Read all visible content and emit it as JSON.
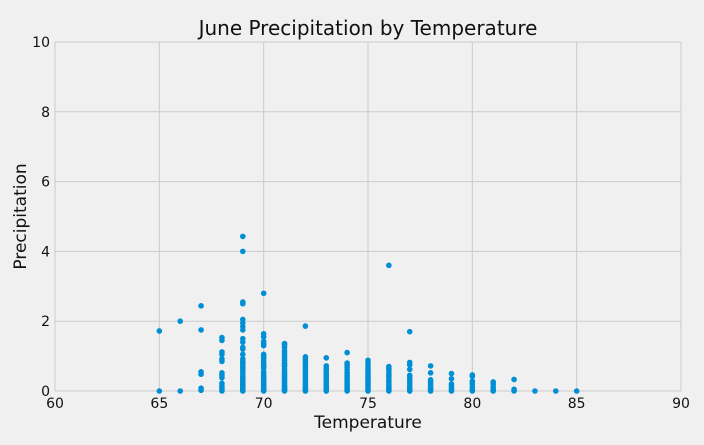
{
  "chart_data": {
    "type": "scatter",
    "title": "June Precipitation by Temperature",
    "xlabel": "Temperature",
    "ylabel": "Precipitation",
    "xlim": [
      60,
      90
    ],
    "ylim": [
      0,
      10
    ],
    "x_ticks": [
      60,
      65,
      70,
      75,
      80,
      85,
      90
    ],
    "y_ticks": [
      0,
      2,
      4,
      6,
      8,
      10
    ],
    "grid": true,
    "marker_color": "#008fd5",
    "background_color": "#f0f0f0",
    "grid_color": "#cbcbcb",
    "x": [
      65,
      65,
      66,
      66,
      67,
      67,
      67,
      67,
      67,
      67,
      68,
      68,
      68,
      68,
      68,
      68,
      68,
      68,
      68,
      68,
      68,
      68,
      68,
      68,
      69,
      69,
      69,
      69,
      69,
      69,
      69,
      69,
      69,
      69,
      69,
      69,
      69,
      69,
      69,
      69,
      69,
      69,
      69,
      69,
      69,
      69,
      69,
      69,
      69,
      69,
      69,
      69,
      69,
      69,
      69,
      69,
      69,
      70,
      70,
      70,
      70,
      70,
      70,
      70,
      70,
      70,
      70,
      70,
      70,
      70,
      70,
      70,
      70,
      70,
      70,
      70,
      70,
      70,
      70,
      70,
      70,
      70,
      70,
      70,
      70,
      70,
      71,
      71,
      71,
      71,
      71,
      71,
      71,
      71,
      71,
      71,
      71,
      71,
      71,
      71,
      71,
      71,
      71,
      71,
      71,
      71,
      71,
      71,
      71,
      71,
      71,
      71,
      72,
      72,
      72,
      72,
      72,
      72,
      72,
      72,
      72,
      72,
      72,
      72,
      72,
      72,
      72,
      72,
      72,
      72,
      72,
      72,
      72,
      73,
      73,
      73,
      73,
      73,
      73,
      73,
      73,
      73,
      73,
      73,
      73,
      73,
      73,
      74,
      74,
      74,
      74,
      74,
      74,
      74,
      74,
      74,
      74,
      74,
      74,
      74,
      74,
      74,
      75,
      75,
      75,
      75,
      75,
      75,
      75,
      75,
      75,
      75,
      75,
      75,
      75,
      75,
      75,
      75,
      76,
      76,
      76,
      76,
      76,
      76,
      76,
      76,
      76,
      76,
      76,
      76,
      76,
      76,
      77,
      77,
      77,
      77,
      77,
      77,
      77,
      77,
      77,
      77,
      77,
      77,
      78,
      78,
      78,
      78,
      78,
      78,
      78,
      78,
      78,
      79,
      79,
      79,
      79,
      79,
      79,
      79,
      80,
      80,
      80,
      80,
      80,
      80,
      80,
      81,
      81,
      81,
      81,
      81,
      82,
      82,
      82,
      83,
      84,
      85
    ],
    "y": [
      1.72,
      0.0,
      2.0,
      0.0,
      2.44,
      1.75,
      0.55,
      0.48,
      0.08,
      0.02,
      1.53,
      1.45,
      1.12,
      1.05,
      0.92,
      0.85,
      0.52,
      0.45,
      0.38,
      0.22,
      0.15,
      0.1,
      0.05,
      0.0,
      4.43,
      4.0,
      2.55,
      2.5,
      2.05,
      1.95,
      1.85,
      1.75,
      1.5,
      1.4,
      1.25,
      1.2,
      1.05,
      0.92,
      0.85,
      0.75,
      0.62,
      0.55,
      0.48,
      0.4,
      0.32,
      0.25,
      0.2,
      0.15,
      0.1,
      0.06,
      0.03,
      0.0,
      0.12,
      0.28,
      0.36,
      0.68,
      0.8,
      2.8,
      1.64,
      1.55,
      1.42,
      1.35,
      1.3,
      1.05,
      1.0,
      0.95,
      0.88,
      0.8,
      0.75,
      0.7,
      0.65,
      0.55,
      0.48,
      0.42,
      0.38,
      0.33,
      0.28,
      0.24,
      0.2,
      0.16,
      0.12,
      0.09,
      0.06,
      0.04,
      0.02,
      0.0,
      1.36,
      1.32,
      1.25,
      1.15,
      1.08,
      1.02,
      0.95,
      0.88,
      0.8,
      0.75,
      0.7,
      0.62,
      0.55,
      0.5,
      0.45,
      0.4,
      0.35,
      0.3,
      0.25,
      0.2,
      0.15,
      0.12,
      0.08,
      0.05,
      0.02,
      0.0,
      1.86,
      0.98,
      0.92,
      0.86,
      0.8,
      0.74,
      0.68,
      0.62,
      0.56,
      0.5,
      0.44,
      0.38,
      0.32,
      0.26,
      0.2,
      0.15,
      0.1,
      0.07,
      0.04,
      0.02,
      0.0,
      0.95,
      0.72,
      0.65,
      0.58,
      0.5,
      0.45,
      0.38,
      0.32,
      0.25,
      0.2,
      0.14,
      0.08,
      0.04,
      0.0,
      1.1,
      0.8,
      0.75,
      0.68,
      0.6,
      0.52,
      0.45,
      0.38,
      0.32,
      0.26,
      0.2,
      0.14,
      0.08,
      0.04,
      0.0,
      0.88,
      0.8,
      0.72,
      0.65,
      0.58,
      0.52,
      0.45,
      0.4,
      0.35,
      0.3,
      0.25,
      0.2,
      0.15,
      0.1,
      0.05,
      0.0,
      3.6,
      0.7,
      0.65,
      0.58,
      0.5,
      0.44,
      0.38,
      0.3,
      0.24,
      0.18,
      0.12,
      0.08,
      0.04,
      0.0,
      1.7,
      0.82,
      0.75,
      0.62,
      0.45,
      0.38,
      0.3,
      0.22,
      0.15,
      0.08,
      0.04,
      0.0,
      0.72,
      0.52,
      0.32,
      0.26,
      0.2,
      0.14,
      0.08,
      0.04,
      0.0,
      0.5,
      0.35,
      0.2,
      0.14,
      0.08,
      0.04,
      0.0,
      0.46,
      0.42,
      0.28,
      0.2,
      0.12,
      0.05,
      0.0,
      0.26,
      0.2,
      0.12,
      0.05,
      0.0,
      0.33,
      0.05,
      0.0,
      0.0,
      0.0,
      0.0
    ]
  }
}
